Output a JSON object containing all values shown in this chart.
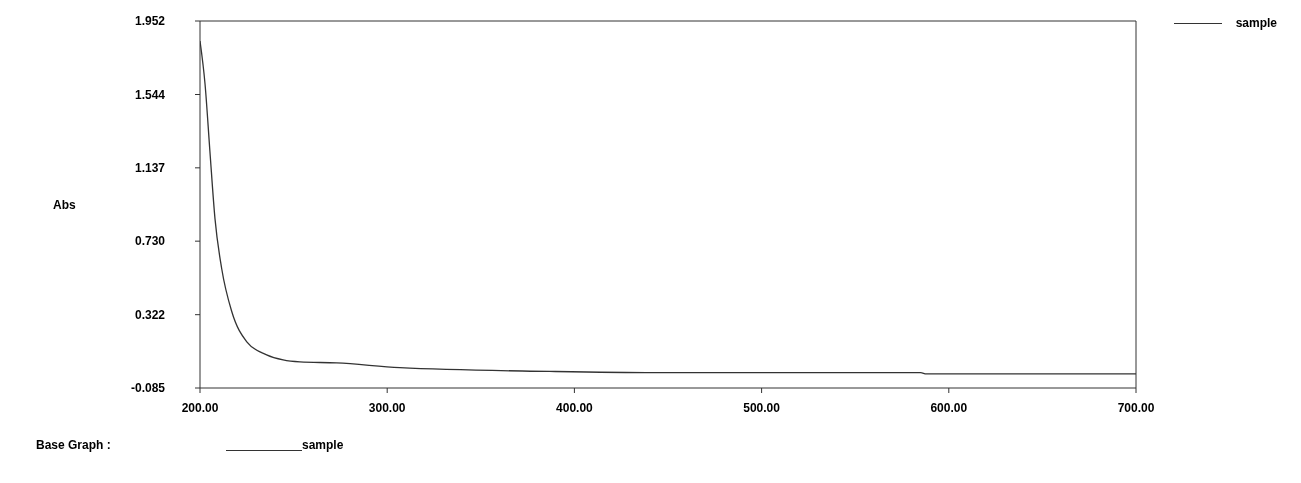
{
  "chart_data": {
    "type": "line",
    "ylabel": "Abs",
    "legend": "top right",
    "annotations": [
      "Base Graph :"
    ],
    "x": [
      200,
      202.7,
      205.3,
      208,
      211.6,
      217,
      225,
      235.6,
      244.4,
      253.4,
      273,
      306.7,
      386.8,
      443,
      585,
      588,
      700
    ],
    "series": [
      {
        "name": "sample",
        "color": "#333333",
        "values": [
          1.841,
          1.601,
          1.228,
          0.855,
          0.577,
          0.338,
          0.171,
          0.099,
          0.071,
          0.06,
          0.054,
          0.028,
          0.007,
          0.0,
          0.0,
          -0.007,
          -0.007
        ]
      }
    ],
    "xlim": [
      200,
      700
    ],
    "ylim": [
      -0.085,
      1.952
    ],
    "xticks": [
      {
        "value": 200,
        "label": "200.00"
      },
      {
        "value": 300,
        "label": "300.00"
      },
      {
        "value": 400,
        "label": "400.00"
      },
      {
        "value": 500,
        "label": "500.00"
      },
      {
        "value": 600,
        "label": "600.00"
      },
      {
        "value": 700,
        "label": "700.00"
      }
    ],
    "yticks": [
      {
        "value": -0.085,
        "label": "-0.085"
      },
      {
        "value": 0.322,
        "label": "0.322"
      },
      {
        "value": 0.73,
        "label": "0.730"
      },
      {
        "value": 1.137,
        "label": "1.137"
      },
      {
        "value": 1.544,
        "label": "1.544"
      },
      {
        "value": 1.952,
        "label": "1.952"
      }
    ],
    "marker": "none",
    "line_style": "solid"
  }
}
